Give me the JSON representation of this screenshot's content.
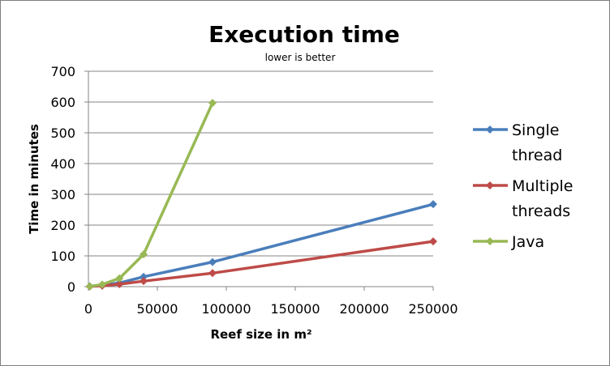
{
  "chart_data": {
    "type": "line",
    "title": "Execution time",
    "subtitle": "lower is better",
    "xlabel": "Reef size in m²",
    "ylabel": "Time in minutes",
    "xlim": [
      0,
      250000
    ],
    "ylim": [
      0,
      700
    ],
    "xticks": [
      "0",
      "50000",
      "100000",
      "150000",
      "200000",
      "250000"
    ],
    "yticks": [
      "0",
      "100",
      "200",
      "300",
      "400",
      "500",
      "600",
      "700"
    ],
    "grid": "horizontal",
    "legend_position": "right",
    "series": [
      {
        "name": "Single thread",
        "legend_lines": [
          "Single",
          "thread"
        ],
        "color": "#4a7ebb",
        "x": [
          1000,
          10000,
          22500,
          40000,
          90000,
          250000
        ],
        "y": [
          1,
          5,
          12,
          32,
          80,
          268
        ]
      },
      {
        "name": "Multiple threads",
        "legend_lines": [
          "Multiple",
          "threads"
        ],
        "color": "#be4b48",
        "x": [
          1000,
          10000,
          22500,
          40000,
          90000,
          250000
        ],
        "y": [
          0.5,
          3,
          8,
          18,
          44,
          147
        ]
      },
      {
        "name": "Java",
        "legend_lines": [
          "Java"
        ],
        "color": "#98b954",
        "x": [
          1000,
          10000,
          22500,
          40000,
          90000
        ],
        "y": [
          1,
          7,
          27,
          105,
          597
        ]
      }
    ]
  }
}
